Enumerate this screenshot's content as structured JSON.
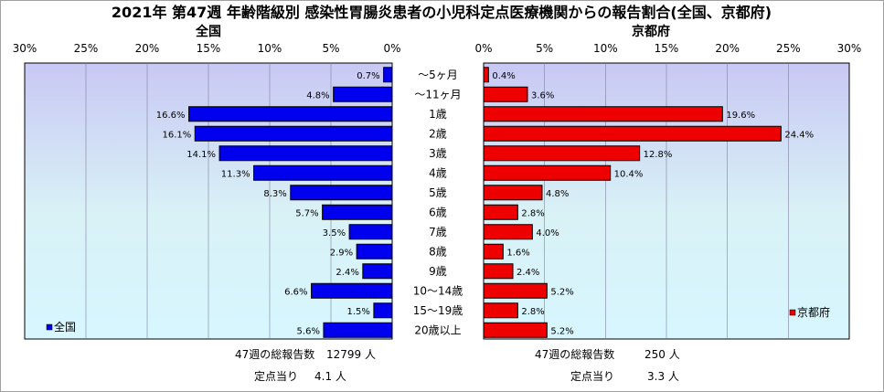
{
  "chart_data": {
    "type": "bar",
    "orientation": "horizontal",
    "title": "2021年 第47週 年齢階級別 感染性胃腸炎患者の小児科定点医療機関からの報告割合(全国、京都府)",
    "categories": [
      "〜5ヶ月",
      "〜11ヶ月",
      "1歳",
      "2歳",
      "3歳",
      "4歳",
      "5歳",
      "6歳",
      "7歳",
      "8歳",
      "9歳",
      "10〜14歳",
      "15〜19歳",
      "20歳以上"
    ],
    "x_ticks": [
      "30%",
      "25%",
      "20%",
      "15%",
      "10%",
      "5%",
      "0%"
    ],
    "x_ticks_right": [
      "0%",
      "5%",
      "10%",
      "15%",
      "20%",
      "25%",
      "30%"
    ],
    "xlim": [
      0,
      30
    ],
    "grid": true,
    "series": [
      {
        "name": "全国",
        "panel_title": "全国",
        "color": "#0000ee",
        "values": [
          0.7,
          4.8,
          16.6,
          16.1,
          14.1,
          11.3,
          8.3,
          5.7,
          3.5,
          2.9,
          2.4,
          6.6,
          1.5,
          5.6
        ],
        "labels": [
          "0.7%",
          "4.8%",
          "16.6%",
          "16.1%",
          "14.1%",
          "11.3%",
          "8.3%",
          "5.7%",
          "3.5%",
          "2.9%",
          "2.4%",
          "6.6%",
          "1.5%",
          "5.6%"
        ],
        "legend_position": "bottom-left"
      },
      {
        "name": "京都府",
        "panel_title": "京都府",
        "color": "#ee0000",
        "values": [
          0.4,
          3.6,
          19.6,
          24.4,
          12.8,
          10.4,
          4.8,
          2.8,
          4.0,
          1.6,
          2.4,
          5.2,
          2.8,
          5.2
        ],
        "labels": [
          "0.4%",
          "3.6%",
          "19.6%",
          "24.4%",
          "12.8%",
          "10.4%",
          "4.8%",
          "2.8%",
          "4.0%",
          "1.6%",
          "2.4%",
          "5.2%",
          "2.8%",
          "5.2%"
        ],
        "legend_position": "bottom-right"
      }
    ],
    "footer": {
      "left": {
        "total_label": "47週の総報告数",
        "total_value": "12799 人",
        "per_label": "定点当り",
        "per_value": "4.1 人"
      },
      "right": {
        "total_label": "47週の総報告数",
        "total_value": "250 人",
        "per_label": "定点当り",
        "per_value": "3.3 人"
      }
    }
  }
}
